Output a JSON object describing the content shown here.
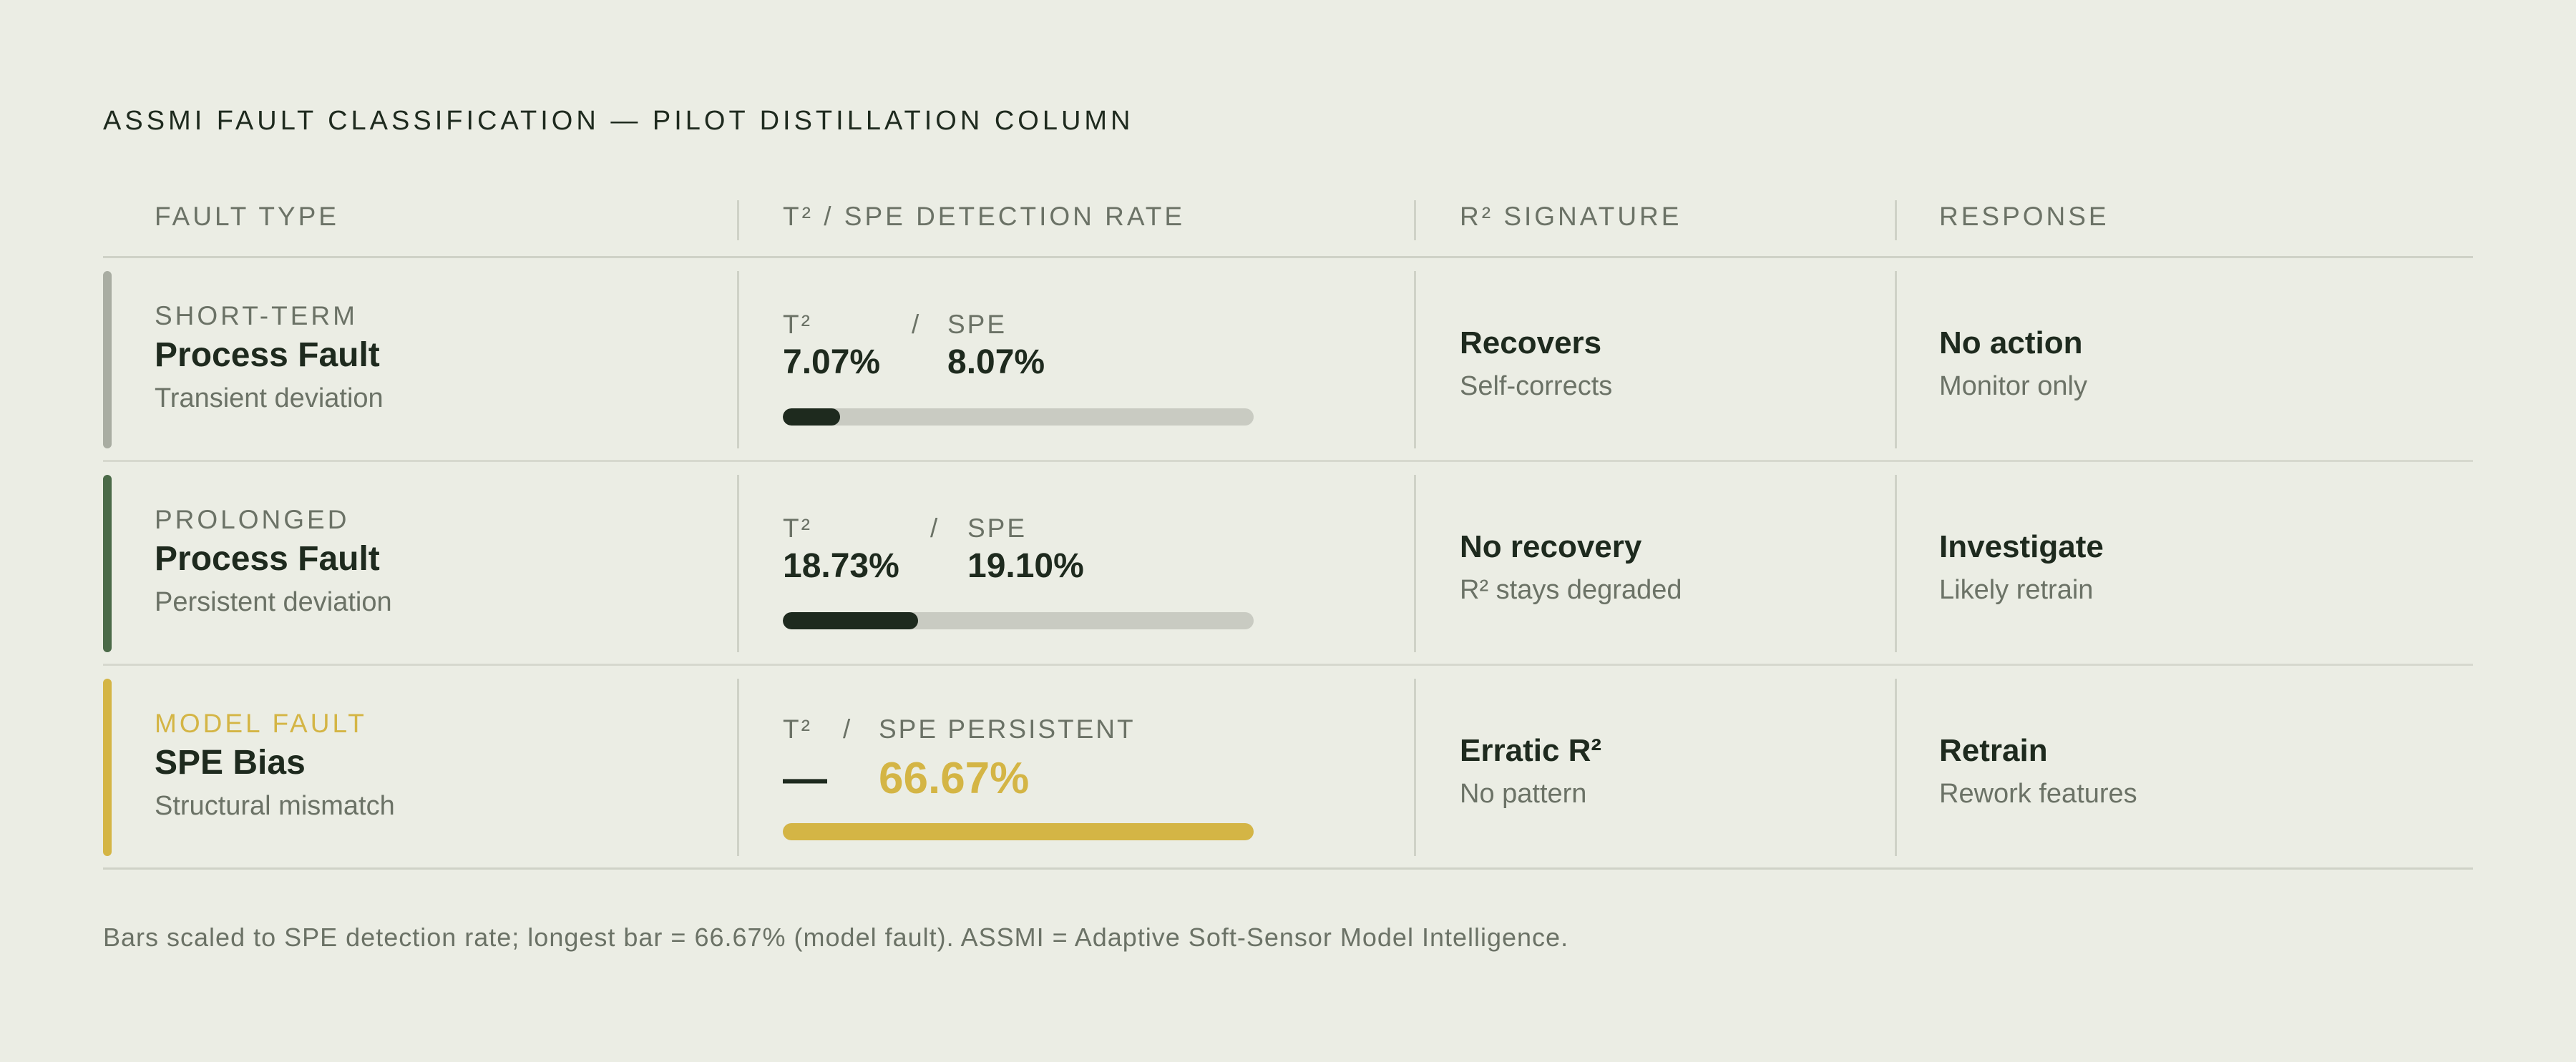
{
  "title": "ASSMI FAULT CLASSIFICATION — PILOT DISTILLATION COLUMN",
  "columns": [
    "FAULT TYPE",
    "T² / SPE DETECTION RATE",
    "R² SIGNATURE",
    "RESPONSE"
  ],
  "rows": [
    {
      "kicker": "SHORT-TERM",
      "name": "Process Fault",
      "desc": "Transient deviation",
      "accent_color": "#a9ada2",
      "t2_label": "T²",
      "slash": "/",
      "spe_label": "SPE",
      "t2_value": "7.07%",
      "spe_value": "8.07%",
      "spe_rate": 8.07,
      "bar_color": "#1e2a1e",
      "signature": "Recovers",
      "signature_sub": "Self-corrects",
      "response": "No action",
      "response_sub": "Monitor only"
    },
    {
      "kicker": "PROLONGED",
      "name": "Process Fault",
      "desc": "Persistent deviation",
      "accent_color": "#4b6a48",
      "t2_label": "T²",
      "slash": "/",
      "spe_label": "SPE",
      "t2_value": "18.73%",
      "spe_value": "19.10%",
      "spe_rate": 19.1,
      "bar_color": "#1e2a1e",
      "signature": "No recovery",
      "signature_sub": "R² stays degraded",
      "response": "Investigate",
      "response_sub": "Likely retrain"
    },
    {
      "kicker": "MODEL FAULT",
      "name": "SPE Bias",
      "desc": "Structural mismatch",
      "accent_color": "#d4b545",
      "t2_label": "T²",
      "slash": "/",
      "spe_label": "SPE PERSISTENT",
      "t2_value": "—",
      "spe_value": "66.67%",
      "spe_rate": 66.67,
      "bar_color": "#d4b545",
      "signature": "Erratic R²",
      "signature_sub": "No pattern",
      "response": "Retrain",
      "response_sub": "Rework features"
    }
  ],
  "footnote": "Bars scaled to SPE detection rate; longest bar = 66.67% (model fault). ASSMI = Adaptive Soft-Sensor Model Intelligence."
}
